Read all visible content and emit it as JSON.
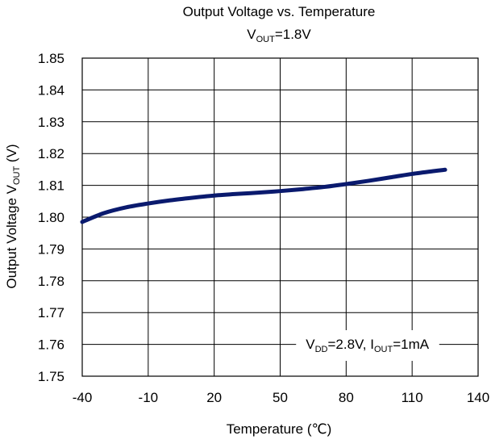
{
  "chart_data": {
    "type": "line",
    "title": "Output Voltage vs. Temperature",
    "subtitle": {
      "base": "V",
      "sub": "OUT",
      "rest": "=1.8V"
    },
    "xlabel": "Temperature (℃)",
    "ylabel": {
      "base": "Output Voltage V",
      "sub": "OUT",
      "rest": "  (V)"
    },
    "x_ticks": [
      "-40",
      "-10",
      "20",
      "50",
      "80",
      "110",
      "140"
    ],
    "y_ticks": [
      "1.75",
      "1.76",
      "1.77",
      "1.78",
      "1.79",
      "1.80",
      "1.81",
      "1.82",
      "1.83",
      "1.84",
      "1.85"
    ],
    "xlim": [
      -40,
      140
    ],
    "ylim": [
      1.75,
      1.85
    ],
    "grid": true,
    "annotation": {
      "parts": [
        {
          "t": "V",
          "sub": false
        },
        {
          "t": "DD",
          "sub": true
        },
        {
          "t": "=2.8V, I",
          "sub": false
        },
        {
          "t": "OUT",
          "sub": true
        },
        {
          "t": "=1mA",
          "sub": false
        }
      ]
    },
    "series": [
      {
        "color": "#0a1a6e",
        "x": [
          -40,
          -30,
          -20,
          -10,
          0,
          10,
          20,
          30,
          40,
          50,
          60,
          70,
          80,
          90,
          100,
          110,
          120,
          125
        ],
        "y": [
          1.7985,
          1.8013,
          1.8031,
          1.8043,
          1.8053,
          1.8061,
          1.8068,
          1.8073,
          1.8077,
          1.8082,
          1.8088,
          1.8095,
          1.8104,
          1.8114,
          1.8125,
          1.8136,
          1.8145,
          1.8149
        ]
      }
    ]
  }
}
